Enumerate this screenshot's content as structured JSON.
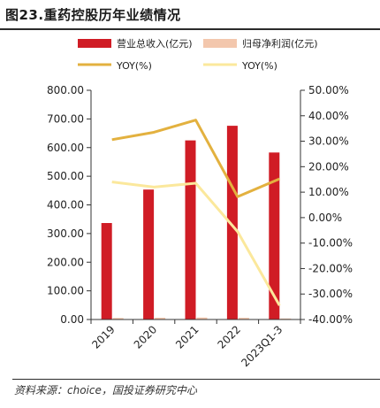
{
  "title": "图23.重药控股历年业绩情况",
  "source": "资料来源：choice，国投证券研究中心",
  "colors": {
    "revenue": "#d01c25",
    "net_profit": "#f3c7ad",
    "yoy_revenue": "#e3b13f",
    "yoy_profit": "#fbe89c"
  },
  "chart_data": {
    "type": "bar",
    "categories": [
      "2019",
      "2020",
      "2021",
      "2022",
      "2023Q1-3"
    ],
    "series": [
      {
        "name": "营业总收入(亿元)",
        "kind": "bar",
        "axis": "left",
        "values": [
          336.7,
          453.5,
          625.1,
          676.1,
          582.8
        ]
      },
      {
        "name": "归母净利润(亿元)",
        "kind": "bar",
        "axis": "left",
        "values": [
          5.3,
          6.1,
          6.9,
          5.9,
          3.6
        ]
      },
      {
        "name": "YOY(%)",
        "kind": "line",
        "axis": "right",
        "values": [
          30.6,
          33.5,
          38.3,
          8.2,
          15.2
        ]
      },
      {
        "name": "YOY(%)",
        "kind": "line",
        "axis": "right",
        "values": [
          14.0,
          12.0,
          13.5,
          -5.5,
          -34.5
        ]
      }
    ],
    "left_axis": {
      "ylim": [
        0,
        800
      ],
      "ticks": [
        "0.00",
        "100.00",
        "200.00",
        "300.00",
        "400.00",
        "500.00",
        "600.00",
        "700.00",
        "800.00"
      ]
    },
    "right_axis": {
      "ylim": [
        -40,
        50
      ],
      "ticks": [
        "-40.00%",
        "-30.00%",
        "-20.00%",
        "-10.00%",
        "0.00%",
        "10.00%",
        "20.00%",
        "30.00%",
        "40.00%",
        "50.00%"
      ]
    },
    "legend_position": "top",
    "grid": false
  }
}
